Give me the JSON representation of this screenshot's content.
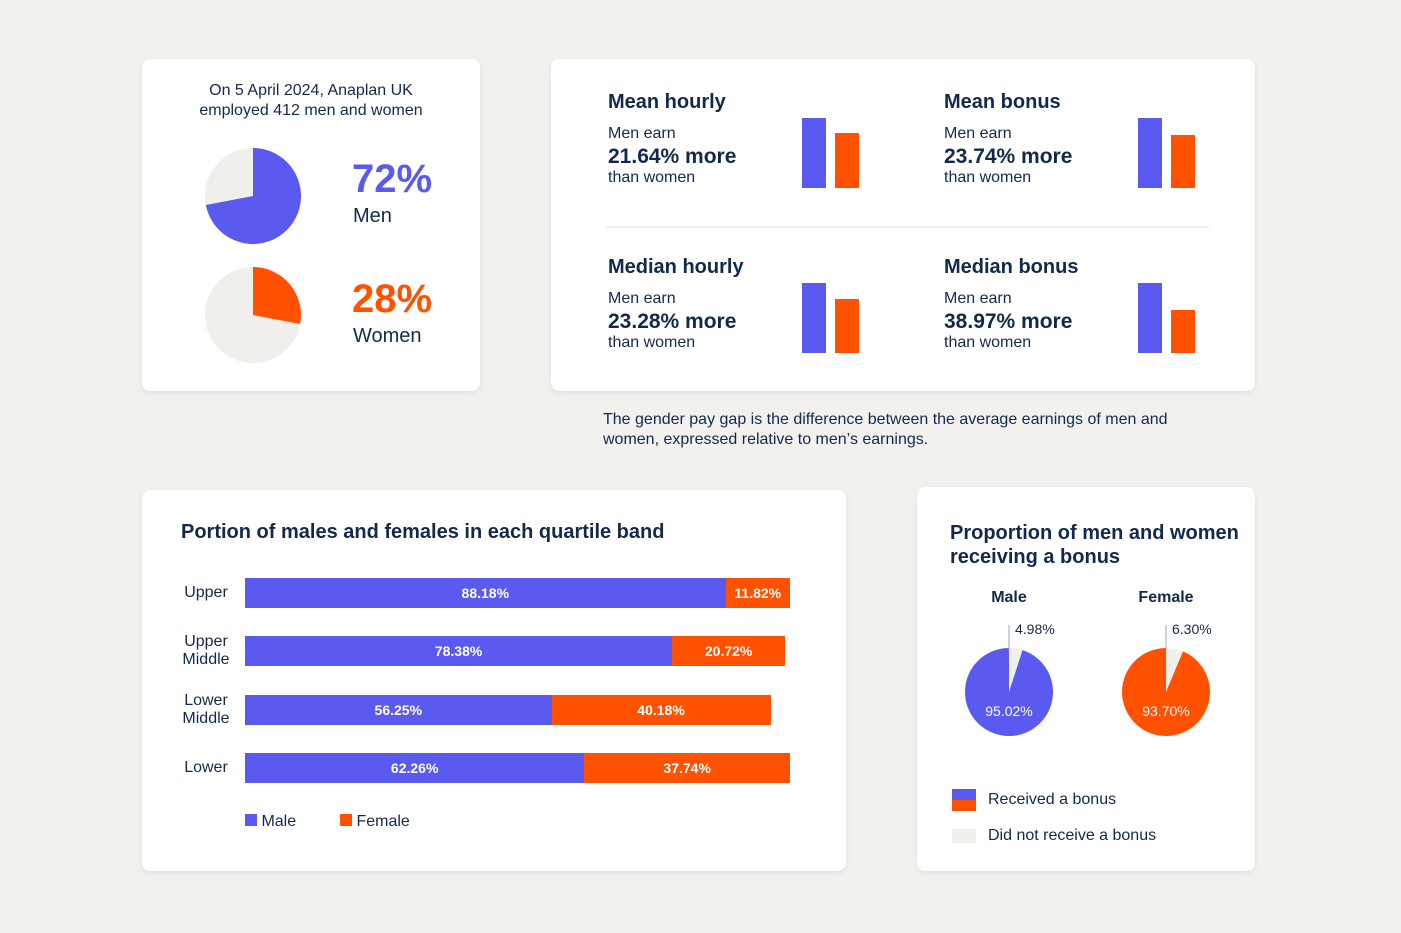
{
  "colors": {
    "male": "#5a5af0",
    "female": "#ff5100",
    "none": "#f0efec",
    "text": "#13294b"
  },
  "headcount": {
    "intro": "On 5 April 2024, Anaplan UK employed 412 men and women",
    "men": {
      "pct": 72,
      "label_pct": "72%",
      "label": "Men"
    },
    "women": {
      "pct": 28,
      "label_pct": "28%",
      "label": "Women"
    }
  },
  "pay_gap": {
    "items": [
      {
        "title": "Mean hourly",
        "lead": "Men earn",
        "value": "21.64% more",
        "tail": "than women",
        "gap": 21.64
      },
      {
        "title": "Mean bonus",
        "lead": "Men earn",
        "value": "23.74% more",
        "tail": "than women",
        "gap": 23.74
      },
      {
        "title": "Median hourly",
        "lead": "Men earn",
        "value": "23.28% more",
        "tail": "than women",
        "gap": 23.28
      },
      {
        "title": "Median bonus",
        "lead": "Men earn",
        "value": "38.97% more",
        "tail": "than women",
        "gap": 38.97
      }
    ],
    "definition": "The gender pay gap is the difference between the average earnings of men and women, expressed relative to men’s earnings."
  },
  "chart_data": [
    {
      "type": "bar",
      "orientation": "horizontal-stacked",
      "title": "Portion of males and females in each quartile band",
      "categories": [
        "Upper",
        "Upper Middle",
        "Lower Middle",
        "Lower"
      ],
      "series": [
        {
          "name": "Male",
          "values": [
            88.18,
            78.38,
            56.25,
            62.26
          ],
          "labels": [
            "88.18%",
            "78.38%",
            "56.25%",
            "62.26%"
          ]
        },
        {
          "name": "Female",
          "values": [
            11.82,
            20.72,
            40.18,
            37.74
          ],
          "labels": [
            "11.82%",
            "20.72%",
            "40.18%",
            "37.74%"
          ]
        }
      ],
      "legend": "bottom-left"
    },
    {
      "type": "pie",
      "title": "Proportion of men and women receiving a bonus",
      "pies": [
        {
          "name": "Male",
          "received": 95.02,
          "not_received": 4.98,
          "received_label": "95.02%",
          "not_label": "4.98%"
        },
        {
          "name": "Female",
          "received": 93.7,
          "not_received": 6.3,
          "received_label": "93.70%",
          "not_label": "6.30%"
        }
      ],
      "legend_items": [
        "Received a bonus",
        "Did not receive a bonus"
      ],
      "legend": "bottom"
    }
  ]
}
